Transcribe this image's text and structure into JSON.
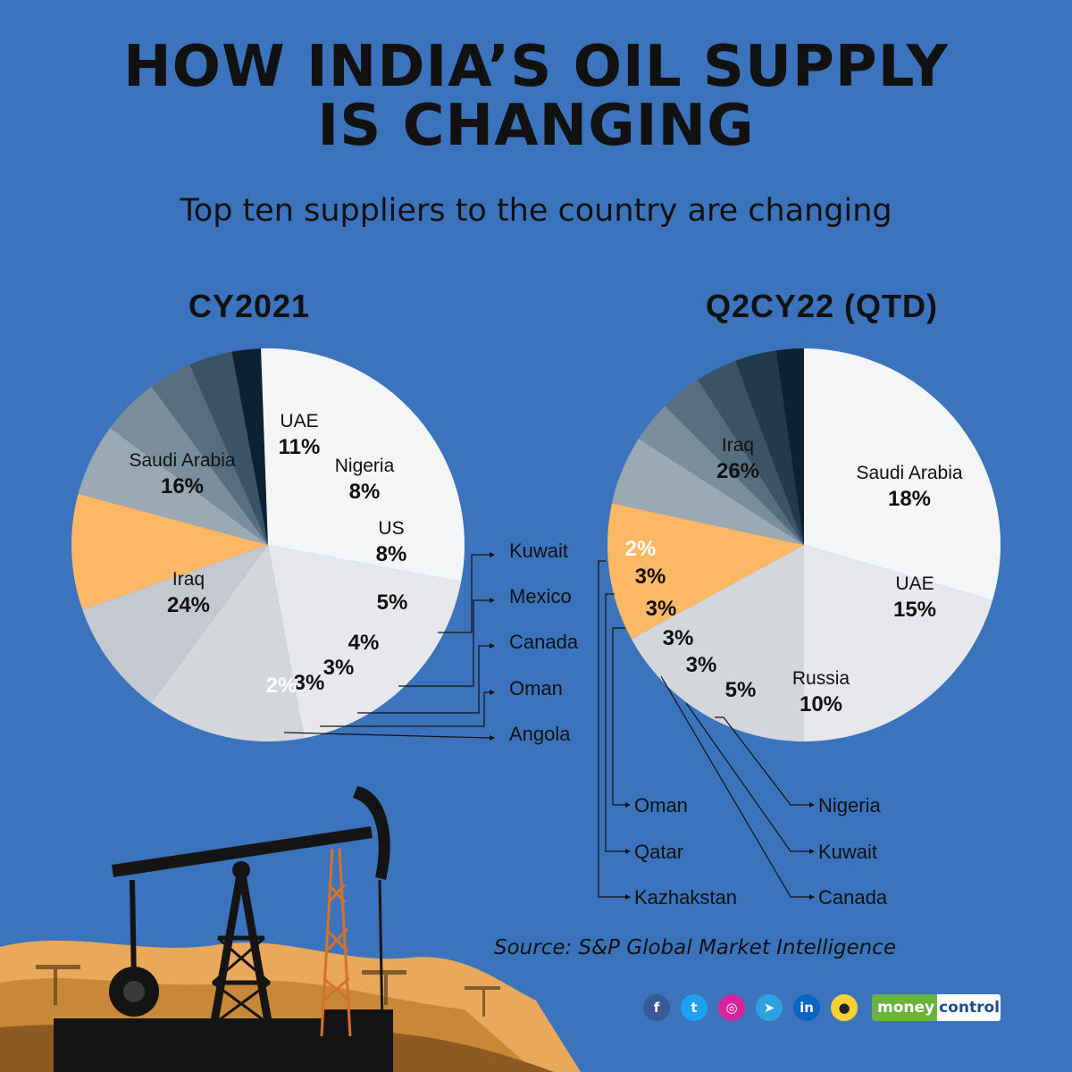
{
  "title_line1": "HOW INDIA’S OIL SUPPLY",
  "title_line2": "IS CHANGING",
  "subtitle": "Top ten suppliers to the country are changing",
  "source": "Source: S&P Global Market Intelligence",
  "brand": {
    "part1": "money",
    "part2": "control"
  },
  "social_icons": [
    "facebook-icon",
    "twitter-icon",
    "instagram-icon",
    "telegram-icon",
    "linkedin-icon",
    "koo-icon"
  ],
  "colors": {
    "background": "#3b74bd",
    "highlight": "#fdb866",
    "light_slices": [
      "#f4f5f6",
      "#e6e8eb",
      "#d3d7dc",
      "#c4c9cf"
    ],
    "dark_slices": [
      "#0c2233",
      "#213a4d",
      "#3a5366",
      "#576e7f",
      "#7a8e9c",
      "#9aa9b3"
    ]
  },
  "chart_data": [
    {
      "type": "pie",
      "title": "CY2021",
      "slices": [
        {
          "label": "Saudi Arabia",
          "value": 16
        },
        {
          "label": "UAE",
          "value": 11
        },
        {
          "label": "Nigeria",
          "value": 8
        },
        {
          "label": "US",
          "value": 8
        },
        {
          "label": "Kuwait",
          "value": 5
        },
        {
          "label": "Mexico",
          "value": 4
        },
        {
          "label": "Canada",
          "value": 3
        },
        {
          "label": "Oman",
          "value": 3
        },
        {
          "label": "Angola",
          "value": 2
        },
        {
          "label": "Iraq",
          "value": 24
        }
      ]
    },
    {
      "type": "pie",
      "title": "Q2CY22 (QTD)",
      "slices": [
        {
          "label": "Iraq",
          "value": 26
        },
        {
          "label": "Saudi Arabia",
          "value": 18
        },
        {
          "label": "UAE",
          "value": 15
        },
        {
          "label": "Russia",
          "value": 10
        },
        {
          "label": "Nigeria",
          "value": 5
        },
        {
          "label": "Kuwait",
          "value": 3
        },
        {
          "label": "Canada",
          "value": 3
        },
        {
          "label": "Oman",
          "value": 3
        },
        {
          "label": "Qatar",
          "value": 3
        },
        {
          "label": "Kazhakstan",
          "value": 2
        }
      ]
    }
  ]
}
